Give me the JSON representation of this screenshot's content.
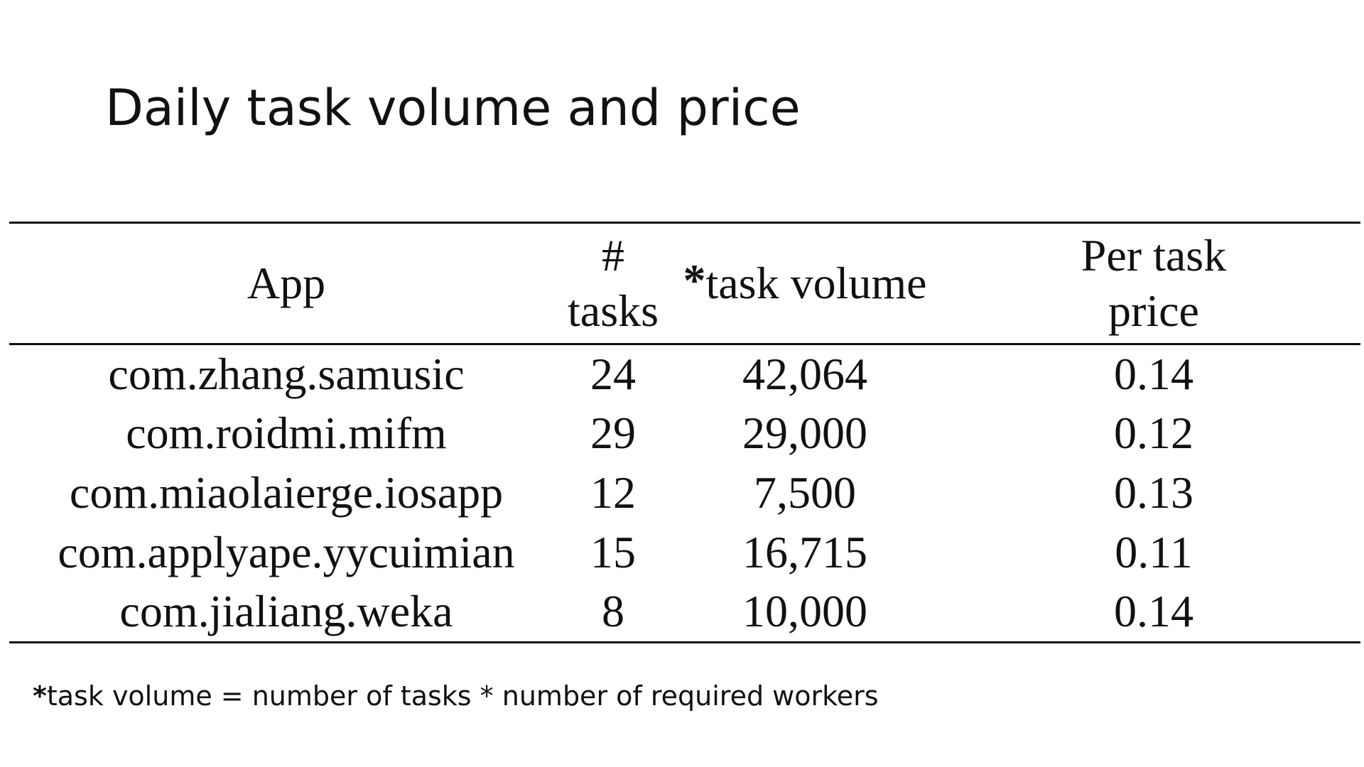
{
  "slide": {
    "title": "Daily task volume and price"
  },
  "table": {
    "headers": {
      "app": "App",
      "tasks": "# tasks",
      "volume_marker": "*",
      "volume": "task volume",
      "price": "Per task price"
    },
    "rows": [
      {
        "app": "com.zhang.samusic",
        "tasks": "24",
        "volume": "42,064",
        "price": "0.14"
      },
      {
        "app": "com.roidmi.mifm",
        "tasks": "29",
        "volume": "29,000",
        "price": "0.12"
      },
      {
        "app": "com.miaolaierge.iosapp",
        "tasks": "12",
        "volume": "7,500",
        "price": "0.13"
      },
      {
        "app": "com.applyape.yycuimian",
        "tasks": "15",
        "volume": "16,715",
        "price": "0.11"
      },
      {
        "app": "com.jialiang.weka",
        "tasks": "8",
        "volume": "10,000",
        "price": "0.14"
      }
    ]
  },
  "footnote": {
    "marker": "*",
    "text": "task volume = number of tasks * number of required workers"
  }
}
